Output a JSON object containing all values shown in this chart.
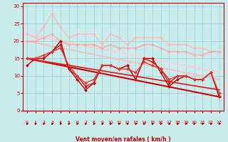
{
  "background_color": "#c8ecec",
  "grid_color": "#a8d8d8",
  "xlabel": "Vent moyen/en rafales ( km/h )",
  "xlabel_color": "#cc0000",
  "tick_color": "#cc0000",
  "axis_color": "#cc0000",
  "xlim": [
    -0.5,
    23.5
  ],
  "ylim": [
    0,
    31
  ],
  "yticks": [
    0,
    5,
    10,
    15,
    20,
    25,
    30
  ],
  "xticks": [
    0,
    1,
    2,
    3,
    4,
    5,
    6,
    7,
    8,
    9,
    10,
    11,
    12,
    13,
    14,
    15,
    16,
    17,
    18,
    19,
    20,
    21,
    22,
    23
  ],
  "series": [
    {
      "x": [
        0,
        1,
        2,
        3,
        4,
        5,
        6,
        7,
        8,
        9,
        10,
        11,
        12,
        13,
        14,
        15,
        16,
        17,
        18,
        19,
        20,
        21,
        22,
        23
      ],
      "y": [
        22,
        21,
        24,
        28,
        24,
        21,
        22,
        22,
        22,
        19,
        22,
        21,
        19,
        21,
        21,
        21,
        21,
        19,
        19,
        19,
        18,
        18,
        17,
        17
      ],
      "color": "#ffbbbb",
      "lw": 1.0,
      "marker": "D",
      "ms": 2.0,
      "zorder": 3
    },
    {
      "x": [
        0,
        1,
        2,
        3,
        4,
        5,
        6,
        7,
        8,
        9,
        10,
        11,
        12,
        13,
        14,
        15,
        16,
        17,
        18,
        19,
        20,
        21,
        22,
        23
      ],
      "y": [
        20,
        20,
        21,
        22,
        20,
        19,
        19,
        19,
        19,
        18,
        19,
        18,
        18,
        18,
        19,
        19,
        18,
        17,
        17,
        17,
        16,
        16,
        17,
        17
      ],
      "color": "#ffaaaa",
      "lw": 1.0,
      "marker": "D",
      "ms": 2.0,
      "zorder": 3
    },
    {
      "x": [
        0,
        1,
        2,
        3,
        4,
        5,
        6,
        7,
        8,
        9,
        10,
        11,
        12,
        13,
        14,
        15,
        16,
        17,
        18,
        19,
        20,
        21,
        22,
        23
      ],
      "y": [
        13,
        15,
        15,
        17,
        20,
        12,
        9,
        6,
        8,
        13,
        13,
        12,
        13,
        9,
        15,
        15,
        11,
        7,
        9,
        10,
        9,
        9,
        11,
        4
      ],
      "color": "#cc0000",
      "lw": 1.0,
      "marker": "D",
      "ms": 2.0,
      "zorder": 5
    },
    {
      "x": [
        0,
        1,
        2,
        3,
        4,
        5,
        6,
        7,
        8,
        9,
        10,
        11,
        12,
        13,
        14,
        15,
        16,
        17,
        18,
        19,
        20,
        21,
        22,
        23
      ],
      "y": [
        15,
        15,
        15,
        17,
        19,
        12,
        10,
        7,
        8,
        13,
        13,
        12,
        13,
        9,
        15,
        14,
        12,
        8,
        10,
        10,
        9,
        9,
        11,
        4
      ],
      "color": "#dd1111",
      "lw": 1.0,
      "marker": "D",
      "ms": 2.0,
      "zorder": 5
    },
    {
      "x": [
        0,
        1,
        2,
        3,
        4,
        5,
        6,
        7,
        8,
        9,
        10,
        11,
        12,
        13,
        14,
        15,
        16,
        17,
        18,
        19,
        20,
        21,
        22,
        23
      ],
      "y": [
        15,
        15,
        16,
        17,
        18,
        13,
        10,
        8,
        9,
        13,
        13,
        12,
        12,
        11,
        14,
        13,
        12,
        9,
        10,
        10,
        9,
        9,
        11,
        5
      ],
      "color": "#ee3333",
      "lw": 1.0,
      "marker": "D",
      "ms": 2.0,
      "zorder": 5
    },
    {
      "x": [
        0,
        23
      ],
      "y": [
        22,
        11
      ],
      "color": "#ffcccc",
      "lw": 1.3,
      "marker": null,
      "ms": 0,
      "zorder": 2
    },
    {
      "x": [
        0,
        23
      ],
      "y": [
        20,
        9
      ],
      "color": "#ffbbbb",
      "lw": 1.3,
      "marker": null,
      "ms": 0,
      "zorder": 2
    },
    {
      "x": [
        0,
        23
      ],
      "y": [
        15,
        4
      ],
      "color": "#cc0000",
      "lw": 1.5,
      "marker": null,
      "ms": 0,
      "zorder": 4
    },
    {
      "x": [
        0,
        23
      ],
      "y": [
        15,
        6
      ],
      "color": "#dd2222",
      "lw": 1.3,
      "marker": null,
      "ms": 0,
      "zorder": 4
    }
  ]
}
